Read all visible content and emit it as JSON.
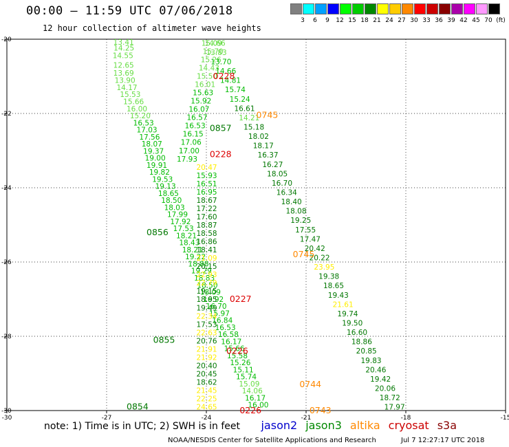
{
  "title": "00:00 – 11:59 UTC 07/06/2018",
  "subtitle": "12 hour collection of altimeter wave heights",
  "scale": {
    "unit": "(ft)",
    "bins": [
      {
        "label": "3",
        "color": "#808080"
      },
      {
        "label": "6",
        "color": "#00ffff"
      },
      {
        "label": "9",
        "color": "#00a0ff"
      },
      {
        "label": "12",
        "color": "#0000ff"
      },
      {
        "label": "15",
        "color": "#00ff00"
      },
      {
        "label": "18",
        "color": "#00cc00"
      },
      {
        "label": "21",
        "color": "#008800"
      },
      {
        "label": "24",
        "color": "#ffff00"
      },
      {
        "label": "27",
        "color": "#ffcc00"
      },
      {
        "label": "30",
        "color": "#ff8800"
      },
      {
        "label": "33",
        "color": "#ff0000"
      },
      {
        "label": "36",
        "color": "#cc0000"
      },
      {
        "label": "39",
        "color": "#880000"
      },
      {
        "label": "42",
        "color": "#aa00aa"
      },
      {
        "label": "45",
        "color": "#ff00ff"
      },
      {
        "label": "70",
        "color": "#ff99ff"
      },
      {
        "label": "",
        "color": "#000000"
      }
    ]
  },
  "legend": {
    "note": "note: 1) Time is in UTC; 2) SWH is in feet",
    "satellites": [
      {
        "name": "jason2",
        "color": "#0000cc"
      },
      {
        "name": "jason3",
        "color": "#008800"
      },
      {
        "name": "altika",
        "color": "#ff8800"
      },
      {
        "name": "cryosat",
        "color": "#cc0000"
      },
      {
        "name": "s3a",
        "color": "#880000"
      }
    ]
  },
  "credit": "NOAA/NESDIS Center for Satellite Applications and Research",
  "credit_date": "Jul  7 12:27:17 UTC 2018",
  "chart_data": {
    "type": "scatter",
    "xlim": [
      -30,
      -15
    ],
    "ylim": [
      -30,
      -20
    ],
    "xticks": [
      "-30",
      "-27",
      "-24",
      "-21",
      "-18",
      "-15"
    ],
    "yticks": [
      "-20",
      "-22",
      "-24",
      "-26",
      "-28",
      "-30"
    ],
    "grid": true,
    "colors": {
      "light": "#66dd44",
      "green": "#00bb00",
      "dark": "#007700",
      "yellow": "#ffee00",
      "orange": "#ff8800",
      "red": "#dd0000"
    },
    "tracks": [
      {
        "name": "track-a",
        "values": [
          "13.41",
          "14.25",
          "14.55",
          "12.65",
          "13.69",
          "13.90",
          "14.17",
          "15.53",
          "15.66",
          "16.00",
          "15.20",
          "16.53",
          "17.03",
          "17.56",
          "18.07",
          "19.37",
          "19.00",
          "19.91",
          "19.82",
          "19.53",
          "19.13",
          "18.65",
          "18.50",
          "18.03",
          "17.99",
          "17.92",
          "17.53",
          "18.21",
          "18.43",
          "18.21",
          "19.22",
          "18.88",
          "19.29",
          "18.83",
          "18.50",
          "18.09",
          "16.92",
          "16.70",
          "15.97",
          "16.84",
          "16.53",
          "16.58",
          "16.17",
          "15.66",
          "15.58",
          "15.26",
          "15.11",
          "15.74",
          "15.09",
          "14.06",
          "16.17",
          "16.00"
        ],
        "x": [
          -26.8,
          -26.79,
          -26.82,
          -26.8,
          -26.8,
          -26.76,
          -26.7,
          -26.6,
          -26.5,
          -26.4,
          -26.3,
          -26.2,
          -26.1,
          -26.02,
          -25.95,
          -25.9,
          -25.85,
          -25.8,
          -25.72,
          -25.63,
          -25.54,
          -25.45,
          -25.36,
          -25.27,
          -25.18,
          -25.09,
          -25.0,
          -24.91,
          -24.82,
          -24.73,
          -24.64,
          -24.55,
          -24.46,
          -24.37,
          -24.28,
          -24.19,
          -24.1,
          -24.01,
          -23.92,
          -23.83,
          -23.74,
          -23.65,
          -23.56,
          -23.47,
          -23.38,
          -23.29,
          -23.2,
          -23.11,
          -23.02,
          -22.93,
          -22.84,
          -22.75
        ],
        "y": [
          -20.15,
          -20.31,
          -20.51,
          -20.77,
          -20.98,
          -21.18,
          -21.37,
          -21.56,
          -21.75,
          -21.94,
          -22.13,
          -22.32,
          -22.51,
          -22.7,
          -22.89,
          -23.08,
          -23.27,
          -23.46,
          -23.65,
          -23.84,
          -24.03,
          -24.22,
          -24.41,
          -24.6,
          -24.79,
          -24.98,
          -25.17,
          -25.36,
          -25.55,
          -25.74,
          -25.93,
          -26.12,
          -26.31,
          -26.5,
          -26.69,
          -26.88,
          -27.07,
          -27.26,
          -27.45,
          -27.64,
          -27.83,
          -28.02,
          -28.21,
          -28.4,
          -28.59,
          -28.78,
          -28.97,
          -29.16,
          -29.35,
          -29.54,
          -29.73,
          -29.92
        ],
        "colors": [
          "light",
          "light",
          "light",
          "light",
          "light",
          "light",
          "light",
          "light",
          "light",
          "light",
          "light",
          "green",
          "green",
          "green",
          "green",
          "green",
          "green",
          "green",
          "green",
          "green",
          "green",
          "green",
          "green",
          "green",
          "green",
          "green",
          "green",
          "green",
          "green",
          "green",
          "green",
          "green",
          "green",
          "green",
          "green",
          "green",
          "green",
          "green",
          "green",
          "green",
          "green",
          "green",
          "green",
          "green",
          "green",
          "green",
          "green",
          "green",
          "light",
          "light",
          "green",
          "green"
        ]
      },
      {
        "name": "track-b",
        "values": [
          "14.66",
          "15.70",
          "15.26",
          "14.43",
          "15.50",
          "16.01",
          "15.63",
          "15.92",
          "16.07",
          "16.57",
          "16.53",
          "16.15",
          "17.06",
          "17.00",
          "17.93",
          "20.47",
          "15.93",
          "16.51",
          "16.95",
          "18.67",
          "17.22",
          "17.60",
          "18.87",
          "18.58",
          "16.86",
          "18.41",
          "21.09",
          "20.15",
          "22.93",
          "22.79",
          "19.15",
          "18.95",
          "19.49",
          "22.34",
          "17.53",
          "22.63",
          "20.76",
          "21.91",
          "21.92",
          "20.40",
          "20.45",
          "18.62",
          "21.45",
          "22.25",
          "24.65"
        ],
        "y": [
          -20.05,
          -20.25,
          -20.45,
          -20.65,
          -20.85,
          -21.05,
          -21.25,
          -21.45,
          -21.65,
          -21.85,
          -22.05,
          -22.3,
          -22.55,
          -22.85,
          -23.15,
          -23.45,
          -23.6,
          -23.9,
          -24.25,
          -24.55,
          -24.8,
          -25.1,
          -25.4,
          -25.6,
          -25.85,
          -26.1,
          -26.4,
          -26.6,
          -26.85,
          -27.05,
          -27.35,
          -27.65,
          -27.95,
          -28.25,
          -28.5,
          -28.8,
          -29.05,
          -29.35,
          -29.55,
          -29.8,
          -30.05,
          -30.35,
          -30.65,
          -30.9,
          -31.2
        ],
        "colors": [
          "light",
          "light",
          "light",
          "light",
          "light",
          "light",
          "green",
          "green",
          "green",
          "green",
          "green",
          "green",
          "green",
          "green",
          "green",
          "yellow",
          "green",
          "green",
          "green",
          "dark",
          "dark",
          "dark",
          "dark",
          "dark",
          "dark",
          "dark",
          "yellow",
          "dark",
          "yellow",
          "yellow",
          "dark",
          "dark",
          "dark",
          "yellow",
          "dark",
          "yellow",
          "dark",
          "yellow",
          "yellow",
          "dark",
          "dark",
          "dark",
          "yellow",
          "yellow",
          "yellow"
        ]
      },
      {
        "name": "track-c",
        "values": [
          "15.09",
          "13.83",
          "13.70",
          "14.66",
          "14.81",
          "15.74",
          "15.24",
          "16.61",
          "14.21",
          "15.18",
          "18.02",
          "18.17",
          "16.37",
          "16.27",
          "18.05",
          "16.70",
          "16.34",
          "18.40",
          "18.08",
          "19.25",
          "17.55",
          "17.47",
          "20.42",
          "20.22",
          "23.95",
          "19.38",
          "18.65",
          "19.43",
          "21.61",
          "19.74",
          "19.50",
          "16.60",
          "18.86",
          "20.85",
          "19.83",
          "20.46",
          "19.42",
          "20.06",
          "18.72",
          "17.97"
        ],
        "colors": [
          "light",
          "light",
          "green",
          "green",
          "green",
          "green",
          "green",
          "dark",
          "light",
          "dark",
          "dark",
          "dark",
          "dark",
          "dark",
          "dark",
          "dark",
          "dark",
          "dark",
          "dark",
          "dark",
          "dark",
          "dark",
          "dark",
          "dark",
          "yellow",
          "dark",
          "dark",
          "dark",
          "yellow",
          "dark",
          "dark",
          "dark",
          "dark",
          "dark",
          "dark",
          "dark",
          "dark",
          "dark",
          "dark",
          "dark"
        ]
      },
      {
        "name": "timestamps",
        "labels": [
          "0228",
          "0745",
          "0857",
          "0228",
          "0856",
          "0745",
          "0227",
          "0855",
          "0226",
          "0744",
          "0854",
          "0226",
          "0743"
        ],
        "colors": [
          "red",
          "orange",
          "dark",
          "red",
          "dark",
          "orange",
          "red",
          "dark",
          "red",
          "orange",
          "dark",
          "red",
          "orange"
        ]
      }
    ]
  }
}
